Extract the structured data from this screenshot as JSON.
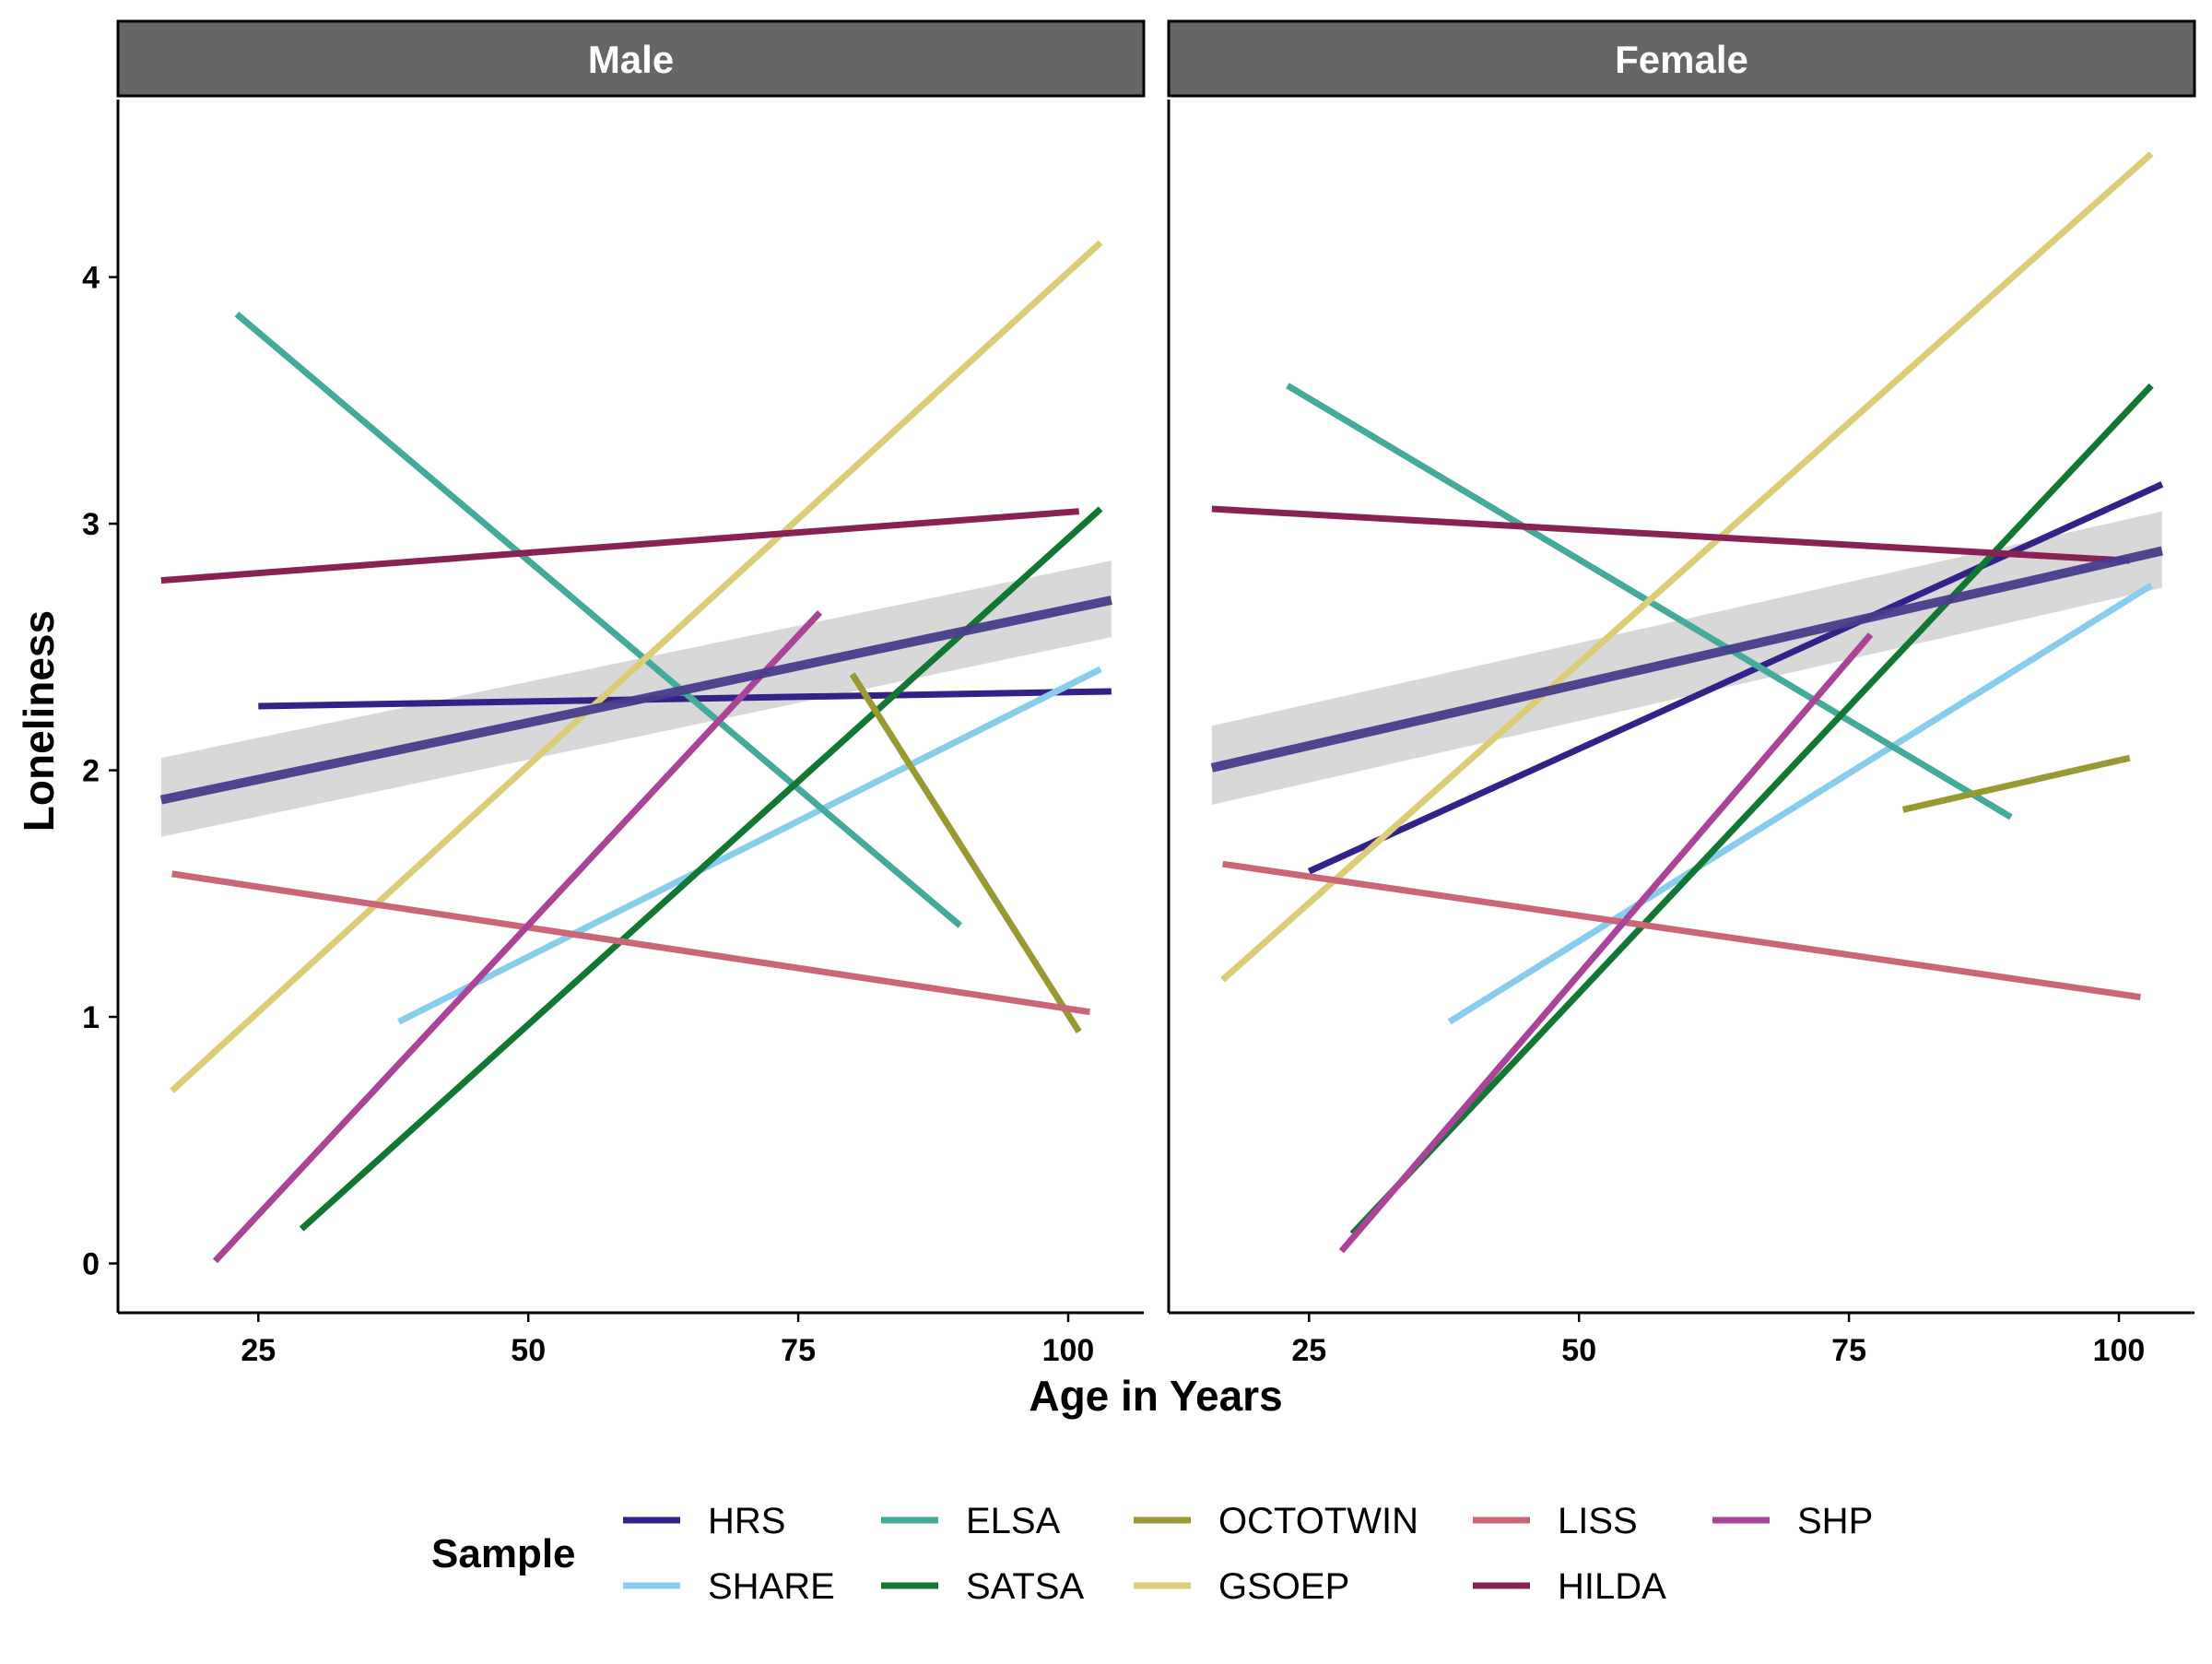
{
  "chart_data": {
    "type": "line",
    "xlabel": "Age in Years",
    "ylabel": "Loneliness",
    "xlim": [
      12,
      107
    ],
    "ylim": [
      -0.2,
      4.72
    ],
    "xticks": [
      25,
      50,
      75,
      100
    ],
    "yticks": [
      0,
      1,
      2,
      3,
      4
    ],
    "grid": false,
    "legend": {
      "title": "Sample",
      "placement": "bottom"
    },
    "series_order": [
      "HRS",
      "SHARE",
      "ELSA",
      "SATSA",
      "OCTOTWIN",
      "GSOEP",
      "LISS",
      "HILDA",
      "SHP"
    ],
    "colors": {
      "HRS": "#332288",
      "SHARE": "#88CCEE",
      "ELSA": "#44AA99",
      "SATSA": "#117733",
      "OCTOTWIN": "#999933",
      "GSOEP": "#DDCC77",
      "LISS": "#CC6677",
      "HILDA": "#882255",
      "SHP": "#AA4499",
      "overall": "#483D8B",
      "ribbon": "#BEBEBE"
    },
    "panels": [
      {
        "label": "Male",
        "series": [
          {
            "name": "HRS",
            "x": [
              25,
              104
            ],
            "y": [
              2.26,
              2.32
            ]
          },
          {
            "name": "SHARE",
            "x": [
              38,
              103
            ],
            "y": [
              0.98,
              2.41
            ]
          },
          {
            "name": "ELSA",
            "x": [
              23,
              90
            ],
            "y": [
              3.85,
              1.37
            ]
          },
          {
            "name": "SATSA",
            "x": [
              29,
              103
            ],
            "y": [
              0.14,
              3.06
            ]
          },
          {
            "name": "OCTOTWIN",
            "x": [
              80,
              101
            ],
            "y": [
              2.39,
              0.94
            ]
          },
          {
            "name": "GSOEP",
            "x": [
              17,
              103
            ],
            "y": [
              0.7,
              4.14
            ]
          },
          {
            "name": "LISS",
            "x": [
              17,
              102
            ],
            "y": [
              1.58,
              1.02
            ]
          },
          {
            "name": "HILDA",
            "x": [
              16,
              101
            ],
            "y": [
              2.77,
              3.05
            ]
          },
          {
            "name": "SHP",
            "x": [
              21,
              77
            ],
            "y": [
              0.01,
              2.64
            ]
          }
        ],
        "overall": {
          "x": [
            16,
            104
          ],
          "y": [
            1.88,
            2.69
          ],
          "lower": [
            1.73,
            2.54
          ],
          "upper": [
            2.05,
            2.85
          ]
        }
      },
      {
        "label": "Female",
        "series": [
          {
            "name": "HRS",
            "x": [
              25,
              104
            ],
            "y": [
              1.59,
              3.16
            ]
          },
          {
            "name": "SHARE",
            "x": [
              38,
              103
            ],
            "y": [
              0.98,
              2.75
            ]
          },
          {
            "name": "ELSA",
            "x": [
              23,
              90
            ],
            "y": [
              3.56,
              1.81
            ]
          },
          {
            "name": "SATSA",
            "x": [
              29,
              103
            ],
            "y": [
              0.12,
              3.56
            ]
          },
          {
            "name": "OCTOTWIN",
            "x": [
              80,
              101
            ],
            "y": [
              1.84,
              2.05
            ]
          },
          {
            "name": "GSOEP",
            "x": [
              17,
              103
            ],
            "y": [
              1.15,
              4.5
            ]
          },
          {
            "name": "LISS",
            "x": [
              17,
              102
            ],
            "y": [
              1.62,
              1.08
            ]
          },
          {
            "name": "HILDA",
            "x": [
              16,
              101
            ],
            "y": [
              3.06,
              2.85
            ]
          },
          {
            "name": "SHP",
            "x": [
              28,
              77
            ],
            "y": [
              0.05,
              2.55
            ]
          }
        ],
        "overall": {
          "x": [
            16,
            104
          ],
          "y": [
            2.01,
            2.89
          ],
          "lower": [
            1.86,
            2.74
          ],
          "upper": [
            2.18,
            3.05
          ]
        }
      }
    ]
  }
}
